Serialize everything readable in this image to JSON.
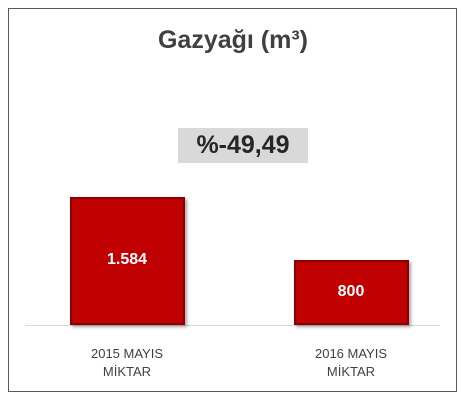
{
  "chart_data": {
    "type": "bar",
    "title": "Gazyağı (m³)",
    "annotation": "%-49,49",
    "categories": [
      "2015 MAYIS\nMİKTAR",
      "2016 MAYIS\nMİKTAR"
    ],
    "values": [
      1584,
      800
    ],
    "value_labels": [
      "1.584",
      "800"
    ],
    "color": "#c00000"
  }
}
